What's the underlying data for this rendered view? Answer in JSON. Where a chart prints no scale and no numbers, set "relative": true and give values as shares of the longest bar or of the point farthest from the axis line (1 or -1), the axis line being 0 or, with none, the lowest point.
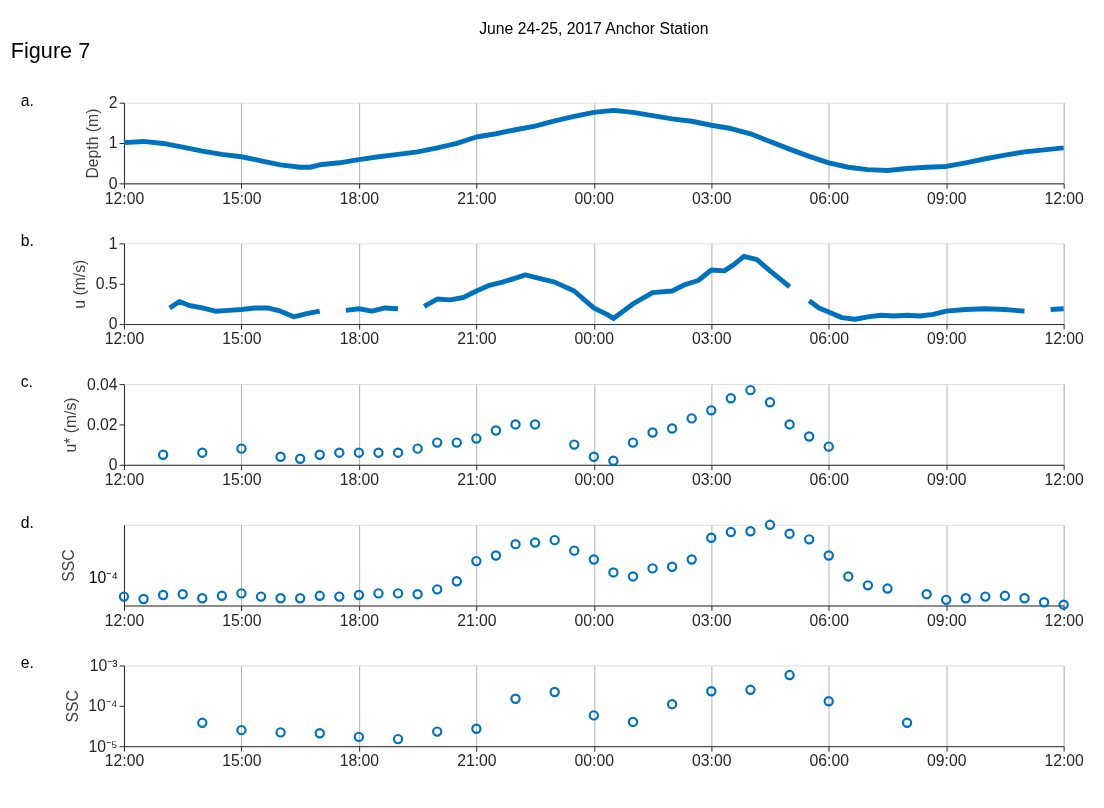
{
  "chart_data": [
    {
      "type": "line",
      "title": "June 24-25, 2017 Anchor Station",
      "ylabel": "Depth (m)",
      "annotations": [
        "Figure 7",
        "a."
      ],
      "xlim": [
        "2017-06-24T12:00",
        "2017-06-25T12:00"
      ],
      "xticks": [
        {
          "value": "2017-06-24T12:00",
          "label": "12:00"
        },
        {
          "value": "2017-06-24T15:00",
          "label": "15:00"
        },
        {
          "value": "2017-06-24T18:00",
          "label": "18:00"
        },
        {
          "value": "2017-06-24T21:00",
          "label": "21:00"
        },
        {
          "value": "2017-06-25T00:00",
          "label": "00:00"
        },
        {
          "value": "2017-06-25T03:00",
          "label": "03:00"
        },
        {
          "value": "2017-06-25T06:00",
          "label": "06:00"
        },
        {
          "value": "2017-06-25T09:00",
          "label": "09:00"
        },
        {
          "value": "2017-06-25T12:00",
          "label": "12:00"
        }
      ],
      "ylim": [
        0,
        2
      ],
      "yticks": [
        0,
        1,
        2
      ],
      "grid": "x",
      "line_style": "solid",
      "series": [
        {
          "color": "#0072bd",
          "x": [
            "2017-06-24T12:00",
            "2017-06-24T12:30",
            "2017-06-24T13:00",
            "2017-06-24T13:30",
            "2017-06-24T14:00",
            "2017-06-24T14:30",
            "2017-06-24T15:00",
            "2017-06-24T15:30",
            "2017-06-24T16:00",
            "2017-06-24T16:30",
            "2017-06-24T16:45",
            "2017-06-24T17:00",
            "2017-06-24T17:30",
            "2017-06-24T18:00",
            "2017-06-24T18:30",
            "2017-06-24T19:00",
            "2017-06-24T19:30",
            "2017-06-24T20:00",
            "2017-06-24T20:30",
            "2017-06-24T21:00",
            "2017-06-24T21:30",
            "2017-06-24T22:00",
            "2017-06-24T22:30",
            "2017-06-24T23:00",
            "2017-06-24T23:30",
            "2017-06-25T00:00",
            "2017-06-25T00:30",
            "2017-06-25T01:00",
            "2017-06-25T01:30",
            "2017-06-25T02:00",
            "2017-06-25T02:30",
            "2017-06-25T03:00",
            "2017-06-25T03:30",
            "2017-06-25T04:00",
            "2017-06-25T04:30",
            "2017-06-25T05:00",
            "2017-06-25T05:30",
            "2017-06-25T06:00",
            "2017-06-25T06:30",
            "2017-06-25T07:00",
            "2017-06-25T07:30",
            "2017-06-25T08:00",
            "2017-06-25T08:30",
            "2017-06-25T09:00",
            "2017-06-25T09:30",
            "2017-06-25T10:00",
            "2017-06-25T10:30",
            "2017-06-25T11:00",
            "2017-06-25T11:30",
            "2017-06-25T12:00"
          ],
          "values": [
            1.01,
            1.04,
            0.99,
            0.9,
            0.8,
            0.72,
            0.66,
            0.56,
            0.46,
            0.4,
            0.4,
            0.46,
            0.51,
            0.59,
            0.66,
            0.72,
            0.78,
            0.88,
            0.99,
            1.15,
            1.23,
            1.33,
            1.42,
            1.55,
            1.66,
            1.76,
            1.81,
            1.76,
            1.68,
            1.6,
            1.54,
            1.44,
            1.36,
            1.23,
            1.04,
            0.85,
            0.67,
            0.51,
            0.4,
            0.34,
            0.32,
            0.37,
            0.4,
            0.42,
            0.51,
            0.61,
            0.7,
            0.78,
            0.83,
            0.88
          ]
        }
      ]
    },
    {
      "type": "line",
      "ylabel": "u (m/s)",
      "annotations": [
        "b."
      ],
      "xlim": [
        "2017-06-24T12:00",
        "2017-06-25T12:00"
      ],
      "xticks": [
        {
          "value": "2017-06-24T12:00",
          "label": "12:00"
        },
        {
          "value": "2017-06-24T15:00",
          "label": "15:00"
        },
        {
          "value": "2017-06-24T18:00",
          "label": "18:00"
        },
        {
          "value": "2017-06-24T21:00",
          "label": "21:00"
        },
        {
          "value": "2017-06-25T00:00",
          "label": "00:00"
        },
        {
          "value": "2017-06-25T03:00",
          "label": "03:00"
        },
        {
          "value": "2017-06-25T06:00",
          "label": "06:00"
        },
        {
          "value": "2017-06-25T09:00",
          "label": "09:00"
        },
        {
          "value": "2017-06-25T12:00",
          "label": "12:00"
        }
      ],
      "ylim": [
        0,
        1
      ],
      "yticks": [
        0,
        0.5,
        1
      ],
      "grid": "x",
      "line_style": "solid",
      "series": [
        {
          "color": "#0072bd",
          "x": [
            "2017-06-24T13:10",
            "2017-06-24T13:25",
            "2017-06-24T13:40",
            "2017-06-24T14:00",
            "2017-06-24T14:20",
            "2017-06-24T14:40",
            "2017-06-24T15:00",
            "2017-06-24T15:20",
            "2017-06-24T15:40",
            "2017-06-24T16:00",
            "2017-06-24T16:20",
            "2017-06-24T16:40",
            "2017-06-24T17:00",
            "2017-06-24T17:20",
            "2017-06-24T17:40",
            "2017-06-24T18:00",
            "2017-06-24T18:20",
            "2017-06-24T18:40",
            "2017-06-24T19:00",
            "2017-06-24T19:20",
            "2017-06-24T19:40",
            "2017-06-24T20:00",
            "2017-06-24T20:20",
            "2017-06-24T20:40",
            "2017-06-24T21:00",
            "2017-06-24T21:20",
            "2017-06-24T21:40",
            "2017-06-24T22:00",
            "2017-06-24T22:15",
            "2017-06-24T22:30",
            "2017-06-24T23:00",
            "2017-06-24T23:30",
            "2017-06-24T23:50",
            "2017-06-25T00:00",
            "2017-06-25T00:20",
            "2017-06-25T00:30",
            "2017-06-25T00:45",
            "2017-06-25T01:00",
            "2017-06-25T01:30",
            "2017-06-25T02:00",
            "2017-06-25T02:20",
            "2017-06-25T02:40",
            "2017-06-25T03:00",
            "2017-06-25T03:20",
            "2017-06-25T03:35",
            "2017-06-25T03:50",
            "2017-06-25T04:10",
            "2017-06-25T04:30",
            "2017-06-25T04:50",
            "2017-06-25T05:00",
            "2017-06-25T05:10",
            "2017-06-25T05:30",
            "2017-06-25T05:45",
            "2017-06-25T06:00",
            "2017-06-25T06:20",
            "2017-06-25T06:40",
            "2017-06-25T07:00",
            "2017-06-25T07:20",
            "2017-06-25T07:40",
            "2017-06-25T08:00",
            "2017-06-25T08:20",
            "2017-06-25T08:40",
            "2017-06-25T09:00",
            "2017-06-25T09:30",
            "2017-06-25T10:00",
            "2017-06-25T10:30",
            "2017-06-25T11:00",
            "2017-06-25T11:10",
            "2017-06-25T11:40",
            "2017-06-25T12:00"
          ],
          "values": [
            0.2,
            0.28,
            0.23,
            0.2,
            0.16,
            0.17,
            0.18,
            0.2,
            0.2,
            0.16,
            0.09,
            0.13,
            0.16,
            null,
            0.17,
            0.19,
            0.16,
            0.2,
            0.19,
            null,
            0.22,
            0.31,
            0.3,
            0.33,
            0.41,
            0.48,
            0.52,
            0.57,
            0.61,
            0.58,
            0.52,
            0.41,
            0.27,
            0.2,
            0.12,
            0.07,
            0.16,
            0.25,
            0.39,
            0.41,
            0.49,
            0.54,
            0.67,
            0.66,
            0.74,
            0.84,
            0.8,
            0.66,
            0.53,
            0.46,
            null,
            0.29,
            0.2,
            0.15,
            0.08,
            0.06,
            0.09,
            0.11,
            0.1,
            0.11,
            0.1,
            0.12,
            0.16,
            0.18,
            0.19,
            0.18,
            0.16,
            null,
            0.18,
            0.19
          ]
        }
      ]
    },
    {
      "type": "scatter",
      "ylabel": "u* (m/s)",
      "annotations": [
        "c."
      ],
      "xlim": [
        "2017-06-24T12:00",
        "2017-06-25T12:00"
      ],
      "xticks": [
        {
          "value": "2017-06-24T12:00",
          "label": "12:00"
        },
        {
          "value": "2017-06-24T15:00",
          "label": "15:00"
        },
        {
          "value": "2017-06-24T18:00",
          "label": "18:00"
        },
        {
          "value": "2017-06-24T21:00",
          "label": "21:00"
        },
        {
          "value": "2017-06-25T00:00",
          "label": "00:00"
        },
        {
          "value": "2017-06-25T03:00",
          "label": "03:00"
        },
        {
          "value": "2017-06-25T06:00",
          "label": "06:00"
        },
        {
          "value": "2017-06-25T09:00",
          "label": "09:00"
        },
        {
          "value": "2017-06-25T12:00",
          "label": "12:00"
        }
      ],
      "ylim": [
        0,
        0.04
      ],
      "yticks": [
        0,
        0.02,
        0.04
      ],
      "grid": "x",
      "marker": "circle",
      "series": [
        {
          "color": "#0072bd",
          "x": [
            "2017-06-24T13:00",
            "2017-06-24T14:00",
            "2017-06-24T15:00",
            "2017-06-24T16:00",
            "2017-06-24T16:30",
            "2017-06-24T17:00",
            "2017-06-24T17:30",
            "2017-06-24T18:00",
            "2017-06-24T18:30",
            "2017-06-24T19:00",
            "2017-06-24T19:30",
            "2017-06-24T20:00",
            "2017-06-24T20:30",
            "2017-06-24T21:00",
            "2017-06-24T21:30",
            "2017-06-24T22:00",
            "2017-06-24T22:30",
            "2017-06-24T23:30",
            "2017-06-25T00:00",
            "2017-06-25T00:30",
            "2017-06-25T01:00",
            "2017-06-25T01:30",
            "2017-06-25T02:00",
            "2017-06-25T02:30",
            "2017-06-25T03:00",
            "2017-06-25T03:30",
            "2017-06-25T04:00",
            "2017-06-25T04:30",
            "2017-06-25T05:00",
            "2017-06-25T05:30",
            "2017-06-25T06:00"
          ],
          "values": [
            0.005,
            0.006,
            0.008,
            0.004,
            0.003,
            0.005,
            0.006,
            0.006,
            0.006,
            0.006,
            0.008,
            0.011,
            0.011,
            0.013,
            0.017,
            0.02,
            0.02,
            0.01,
            0.004,
            0.002,
            0.011,
            0.016,
            0.018,
            0.023,
            0.027,
            0.033,
            0.037,
            0.031,
            0.02,
            0.014,
            0.009
          ]
        }
      ]
    },
    {
      "type": "scatter",
      "ylabel": "SSC",
      "annotations": [
        "10⁻⁴",
        "d."
      ],
      "relative": true,
      "xlim": [
        "2017-06-24T12:00",
        "2017-06-25T12:00"
      ],
      "xticks": [
        {
          "value": "2017-06-24T12:00",
          "label": "12:00"
        },
        {
          "value": "2017-06-24T15:00",
          "label": "15:00"
        },
        {
          "value": "2017-06-24T18:00",
          "label": "18:00"
        },
        {
          "value": "2017-06-24T21:00",
          "label": "21:00"
        },
        {
          "value": "2017-06-25T00:00",
          "label": "00:00"
        },
        {
          "value": "2017-06-25T03:00",
          "label": "03:00"
        },
        {
          "value": "2017-06-25T06:00",
          "label": "06:00"
        },
        {
          "value": "2017-06-25T09:00",
          "label": "09:00"
        },
        {
          "value": "2017-06-25T12:00",
          "label": "12:00"
        }
      ],
      "grid": "x",
      "marker": "circle",
      "series": [
        {
          "color": "#0072bd",
          "x": [
            "2017-06-24T12:00",
            "2017-06-24T12:30",
            "2017-06-24T13:00",
            "2017-06-24T13:30",
            "2017-06-24T14:00",
            "2017-06-24T14:30",
            "2017-06-24T15:00",
            "2017-06-24T15:30",
            "2017-06-24T16:00",
            "2017-06-24T16:30",
            "2017-06-24T17:00",
            "2017-06-24T17:30",
            "2017-06-24T18:00",
            "2017-06-24T18:30",
            "2017-06-24T19:00",
            "2017-06-24T19:30",
            "2017-06-24T20:00",
            "2017-06-24T20:30",
            "2017-06-24T21:00",
            "2017-06-24T21:30",
            "2017-06-24T22:00",
            "2017-06-24T22:30",
            "2017-06-24T23:00",
            "2017-06-24T23:30",
            "2017-06-25T00:00",
            "2017-06-25T00:30",
            "2017-06-25T01:00",
            "2017-06-25T01:30",
            "2017-06-25T02:00",
            "2017-06-25T02:30",
            "2017-06-25T03:00",
            "2017-06-25T03:30",
            "2017-06-25T04:00",
            "2017-06-25T04:30",
            "2017-06-25T05:00",
            "2017-06-25T05:30",
            "2017-06-25T06:00",
            "2017-06-25T06:30",
            "2017-06-25T07:00",
            "2017-06-25T07:30",
            "2017-06-25T08:30",
            "2017-06-25T09:00",
            "2017-06-25T09:30",
            "2017-06-25T10:00",
            "2017-06-25T10:30",
            "2017-06-25T11:00",
            "2017-06-25T11:30",
            "2017-06-25T12:00"
          ],
          "values": [
            0.11,
            0.08,
            0.13,
            0.14,
            0.09,
            0.12,
            0.15,
            0.11,
            0.09,
            0.09,
            0.12,
            0.11,
            0.13,
            0.15,
            0.15,
            0.14,
            0.2,
            0.3,
            0.55,
            0.62,
            0.76,
            0.78,
            0.81,
            0.68,
            0.57,
            0.41,
            0.36,
            0.46,
            0.48,
            0.57,
            0.84,
            0.91,
            0.92,
            1,
            0.89,
            0.82,
            0.62,
            0.36,
            0.25,
            0.21,
            0.14,
            0.07,
            0.09,
            0.11,
            0.12,
            0.09,
            0.04,
            0.01
          ]
        }
      ]
    },
    {
      "type": "scatter",
      "ylabel": "SSC",
      "annotations": [
        "e."
      ],
      "xlim": [
        "2017-06-24T12:00",
        "2017-06-25T12:00"
      ],
      "xticks": [
        {
          "value": "2017-06-24T12:00",
          "label": "12:00"
        },
        {
          "value": "2017-06-24T15:00",
          "label": "15:00"
        },
        {
          "value": "2017-06-24T18:00",
          "label": "18:00"
        },
        {
          "value": "2017-06-24T21:00",
          "label": "21:00"
        },
        {
          "value": "2017-06-25T00:00",
          "label": "00:00"
        },
        {
          "value": "2017-06-25T03:00",
          "label": "03:00"
        },
        {
          "value": "2017-06-25T06:00",
          "label": "06:00"
        },
        {
          "value": "2017-06-25T09:00",
          "label": "09:00"
        },
        {
          "value": "2017-06-25T12:00",
          "label": "12:00"
        }
      ],
      "ylim": [
        1e-05,
        0.001
      ],
      "yticks": [
        {
          "value": 1e-05,
          "label": "10⁻⁵"
        },
        {
          "value": 0.0001,
          "label": "10⁻⁴"
        },
        {
          "value": 0.001,
          "label": "10⁻³"
        }
      ],
      "log": true,
      "grid": "x",
      "marker": "circle",
      "series": [
        {
          "color": "#0072bd",
          "x": [
            "2017-06-24T14:00",
            "2017-06-24T15:00",
            "2017-06-24T16:00",
            "2017-06-24T17:00",
            "2017-06-24T18:00",
            "2017-06-24T19:00",
            "2017-06-24T20:00",
            "2017-06-24T21:00",
            "2017-06-24T22:00",
            "2017-06-24T23:00",
            "2017-06-25T00:00",
            "2017-06-25T01:00",
            "2017-06-25T02:00",
            "2017-06-25T03:00",
            "2017-06-25T04:00",
            "2017-06-25T05:00",
            "2017-06-25T06:00",
            "2017-06-25T08:00"
          ],
          "values": [
            3.8e-05,
            2.5e-05,
            2.2e-05,
            2.1e-05,
            1.7e-05,
            1.5e-05,
            2.3e-05,
            2.7e-05,
            0.00015,
            0.00022,
            5.8e-05,
            4e-05,
            0.00011,
            0.00023,
            0.00025,
            0.00058,
            0.00013,
            3.8e-05
          ]
        }
      ]
    }
  ]
}
